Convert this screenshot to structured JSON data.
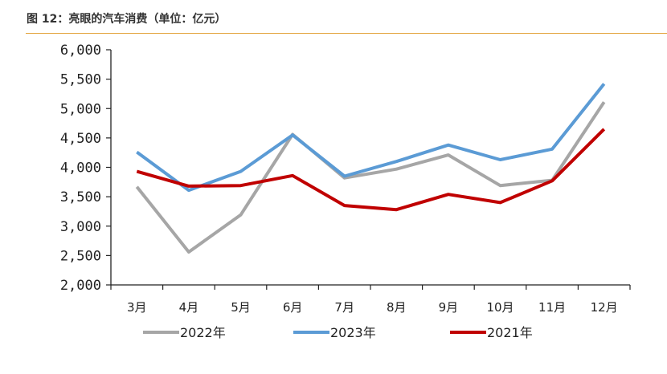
{
  "header": {
    "title": "图 12：亮眼的汽车消费（单位：亿元）"
  },
  "chart_data": {
    "type": "line",
    "title": "",
    "xlabel": "",
    "ylabel": "",
    "ylim": [
      2000,
      6000
    ],
    "y_ticks": [
      "2,000",
      "2,500",
      "3,000",
      "3,500",
      "4,000",
      "4,500",
      "5,000",
      "5,500",
      "6,000"
    ],
    "categories": [
      "3月",
      "4月",
      "5月",
      "6月",
      "7月",
      "8月",
      "9月",
      "10月",
      "11月",
      "12月"
    ],
    "series": [
      {
        "name": "2022年",
        "color": "#a6a6a6",
        "values": [
          3670,
          2560,
          3190,
          4560,
          3820,
          3970,
          4210,
          3690,
          3780,
          5110
        ]
      },
      {
        "name": "2023年",
        "color": "#5b9bd5",
        "values": [
          4260,
          3610,
          3930,
          4550,
          3850,
          4100,
          4380,
          4130,
          4310,
          5420
        ]
      },
      {
        "name": "2021年",
        "color": "#c00000",
        "values": [
          3930,
          3680,
          3690,
          3860,
          3350,
          3280,
          3540,
          3400,
          3770,
          4650
        ]
      }
    ],
    "grid": false,
    "legend_position": "bottom"
  }
}
